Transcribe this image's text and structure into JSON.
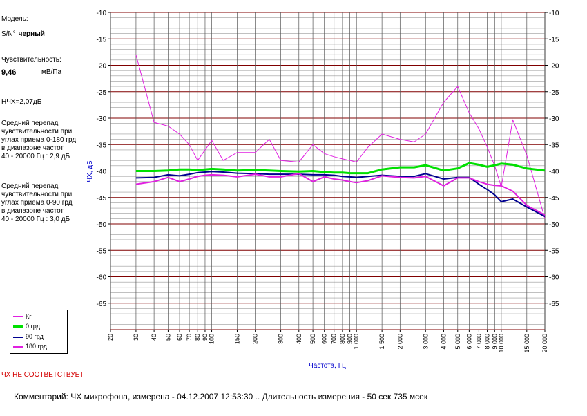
{
  "info": {
    "model_label": "Модель:",
    "serial_label": "S/N°",
    "serial_value": "черный",
    "sensitivity_label": "Чувствительность:",
    "sensitivity_value": "9,46",
    "sensitivity_unit": "мВ/Па",
    "nchx": "НЧХ=2,07дБ",
    "avg_0_180": [
      "Средний перепад",
      "чувствительности при",
      "углах приема 0-180 грд",
      "в диапазоне частот",
      "40 - 20000 Гц : 2,9 дБ"
    ],
    "avg_0_90": [
      "Средний перепад",
      "чувствительности при",
      "углах приема 0-90 грд",
      "в диапазоне частот",
      "40 - 20000 Гц : 3,0 дБ"
    ]
  },
  "verdict": "ЧХ НЕ СООТВЕТСТВУЕТ",
  "comment": "Комментарий: ЧХ микрофона, измерена - 04.12.2007 12:53:30 ..  Длительность измерения - 50 сек 735 мсек",
  "chart_data": {
    "type": "line",
    "xlabel": "Частота, Гц",
    "ylabel": "ЧХ, дБ",
    "xscale": "log",
    "xlim": [
      20,
      20000
    ],
    "ylim": [
      -70,
      -10
    ],
    "grid": true,
    "legend_position": "bottom-left",
    "y_ticks": [
      -10,
      -15,
      -20,
      -25,
      -30,
      -35,
      -40,
      -45,
      -50,
      -55,
      -60,
      -65
    ],
    "x_ticks": [
      {
        "v": 20,
        "t": "20"
      },
      {
        "v": 30,
        "t": "30"
      },
      {
        "v": 40,
        "t": "40"
      },
      {
        "v": 50,
        "t": "50"
      },
      {
        "v": 60,
        "t": "60"
      },
      {
        "v": 70,
        "t": "70"
      },
      {
        "v": 80,
        "t": "80"
      },
      {
        "v": 90,
        "t": "90"
      },
      {
        "v": 100,
        "t": "100"
      },
      {
        "v": 150,
        "t": "150"
      },
      {
        "v": 200,
        "t": "200"
      },
      {
        "v": 300,
        "t": "300"
      },
      {
        "v": 400,
        "t": "400"
      },
      {
        "v": 500,
        "t": "500"
      },
      {
        "v": 600,
        "t": "600"
      },
      {
        "v": 700,
        "t": "700"
      },
      {
        "v": 800,
        "t": "800"
      },
      {
        "v": 900,
        "t": "900"
      },
      {
        "v": 1000,
        "t": "1 000"
      },
      {
        "v": 1500,
        "t": "1 500"
      },
      {
        "v": 2000,
        "t": "2 000"
      },
      {
        "v": 3000,
        "t": "3 000"
      },
      {
        "v": 4000,
        "t": "4 000"
      },
      {
        "v": 5000,
        "t": "5 000"
      },
      {
        "v": 6000,
        "t": "6 000"
      },
      {
        "v": 7000,
        "t": "7 000"
      },
      {
        "v": 8000,
        "t": "8 000"
      },
      {
        "v": 9000,
        "t": "9 000"
      },
      {
        "v": 10000,
        "t": "10 000"
      },
      {
        "v": 15000,
        "t": "15 000"
      },
      {
        "v": 20000,
        "t": "20 000"
      }
    ],
    "series": [
      {
        "name": "Кг",
        "color": "#e020e0",
        "width": 1,
        "x": [
          30,
          40,
          50,
          60,
          70,
          80,
          90,
          100,
          120,
          150,
          200,
          250,
          300,
          400,
          500,
          600,
          700,
          800,
          900,
          1000,
          1200,
          1500,
          2000,
          2500,
          3000,
          4000,
          5000,
          6000,
          7000,
          8000,
          9000,
          10000,
          12000,
          15000,
          20000
        ],
        "y": [
          -18,
          -30.8,
          -31.5,
          -33,
          -35,
          -38,
          -36,
          -34.2,
          -38,
          -36.5,
          -36.5,
          -34,
          -38,
          -38.3,
          -35,
          -36.7,
          -37.3,
          -37.7,
          -38,
          -38.3,
          -35.5,
          -33,
          -34,
          -34.5,
          -33,
          -27,
          -24,
          -29,
          -32,
          -35.5,
          -39,
          -43,
          -30.3,
          -37,
          -49
        ]
      },
      {
        "name": "0 грд",
        "color": "#00e000",
        "width": 3,
        "x": [
          30,
          40,
          50,
          60,
          70,
          80,
          90,
          100,
          120,
          150,
          200,
          250,
          300,
          400,
          500,
          600,
          700,
          800,
          900,
          1000,
          1200,
          1500,
          2000,
          2500,
          3000,
          4000,
          5000,
          6000,
          7000,
          8000,
          9000,
          10000,
          12000,
          15000,
          20000
        ],
        "y": [
          -40,
          -40,
          -39.9,
          -39.7,
          -39.7,
          -39.8,
          -39.7,
          -39.6,
          -39.7,
          -39.9,
          -39.8,
          -39.9,
          -40,
          -40.1,
          -40,
          -40.2,
          -40.3,
          -40.3,
          -40.4,
          -40.4,
          -40.4,
          -39.7,
          -39.3,
          -39.3,
          -38.9,
          -39.9,
          -39.5,
          -38.5,
          -38.8,
          -39.2,
          -38.9,
          -38.6,
          -38.8,
          -39.5,
          -39.9
        ]
      },
      {
        "name": "90 грд",
        "color": "#000090",
        "width": 2,
        "x": [
          30,
          40,
          50,
          60,
          70,
          80,
          90,
          100,
          120,
          150,
          200,
          250,
          300,
          400,
          500,
          600,
          700,
          800,
          900,
          1000,
          1200,
          1500,
          2000,
          2500,
          3000,
          4000,
          5000,
          6000,
          7000,
          8000,
          9000,
          10000,
          12000,
          15000,
          20000
        ],
        "y": [
          -41.3,
          -41.2,
          -40.7,
          -40.9,
          -40.6,
          -40.3,
          -40.2,
          -40.1,
          -40.2,
          -40.4,
          -40.5,
          -40.6,
          -40.6,
          -40.6,
          -40.7,
          -40.7,
          -40.8,
          -41,
          -41.1,
          -41.2,
          -41,
          -40.8,
          -41,
          -41,
          -40.5,
          -41.5,
          -41.2,
          -41.2,
          -42.5,
          -43.5,
          -44.5,
          -45.8,
          -45.3,
          -46.8,
          -48.6
        ]
      },
      {
        "name": "180 грд",
        "color": "#e020e0",
        "width": 2,
        "x": [
          30,
          40,
          50,
          60,
          70,
          80,
          90,
          100,
          120,
          150,
          200,
          250,
          300,
          400,
          500,
          600,
          700,
          800,
          900,
          1000,
          1200,
          1500,
          2000,
          2500,
          3000,
          4000,
          5000,
          6000,
          7000,
          8000,
          9000,
          10000,
          12000,
          15000,
          20000
        ],
        "y": [
          -42.5,
          -42,
          -41.2,
          -42,
          -41.5,
          -41,
          -40.8,
          -40.7,
          -40.8,
          -41.1,
          -40.6,
          -41.1,
          -41.1,
          -40.5,
          -42,
          -41.1,
          -41.5,
          -41.7,
          -42,
          -42.2,
          -41.8,
          -40.9,
          -41.2,
          -41.3,
          -41,
          -42.8,
          -41.3,
          -41.3,
          -42,
          -42.5,
          -42.7,
          -42.8,
          -43.8,
          -46.5,
          -48.3
        ]
      }
    ]
  }
}
